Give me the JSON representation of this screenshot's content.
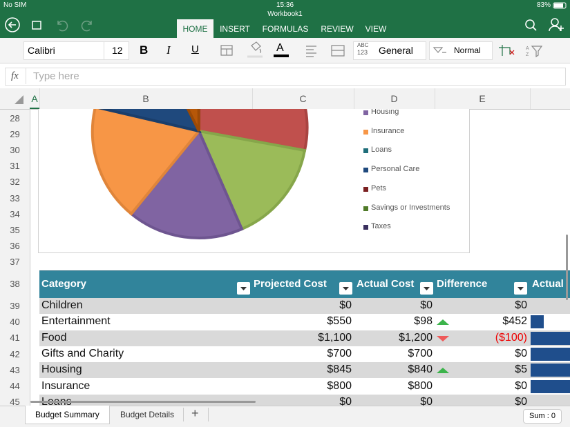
{
  "status_bar": {
    "carrier": "No SIM",
    "time": "15:36",
    "battery": "83%"
  },
  "workbook_title": "Workbook1",
  "ribbon_tabs": [
    "HOME",
    "INSERT",
    "FORMULAS",
    "REVIEW",
    "VIEW"
  ],
  "toolbar": {
    "font": "Calibri",
    "font_size": "12",
    "bold": "B",
    "italic": "I",
    "underline": "U",
    "font_color": "A",
    "number_format_icon": [
      "ABC",
      "123"
    ],
    "number_format": "General",
    "cell_style": "Normal"
  },
  "formula_bar": {
    "label": "fx",
    "placeholder": "Type here"
  },
  "column_headers": [
    "A",
    "B",
    "C",
    "D",
    "E"
  ],
  "row_numbers": [
    28,
    29,
    30,
    31,
    32,
    33,
    34,
    35,
    36,
    37,
    38,
    39,
    40,
    41,
    42,
    43,
    44,
    45
  ],
  "chart": {
    "legend": [
      "Housing",
      "Insurance",
      "Loans",
      "Personal Care",
      "Pets",
      "Savings or Investments",
      "Taxes"
    ]
  },
  "table": {
    "headers": [
      "Category",
      "Projected Cost",
      "Actual Cost",
      "Difference",
      "Actual"
    ],
    "rows": [
      [
        "Children",
        "$0",
        "$0",
        "$0"
      ],
      [
        "Entertainment",
        "$550",
        "$98",
        "$452"
      ],
      [
        "Food",
        "$1,100",
        "$1,200",
        "($100)"
      ],
      [
        "Gifts and Charity",
        "$700",
        "$700",
        "$0"
      ],
      [
        "Housing",
        "$845",
        "$840",
        "$5"
      ],
      [
        "Insurance",
        "$800",
        "$800",
        "$0"
      ],
      [
        "Loans",
        "$0",
        "$0",
        "$0"
      ]
    ]
  },
  "sheet_tabs": [
    "Budget Summary",
    "Budget Details"
  ],
  "add_sheet": "+",
  "status_sum": "Sum : 0"
}
